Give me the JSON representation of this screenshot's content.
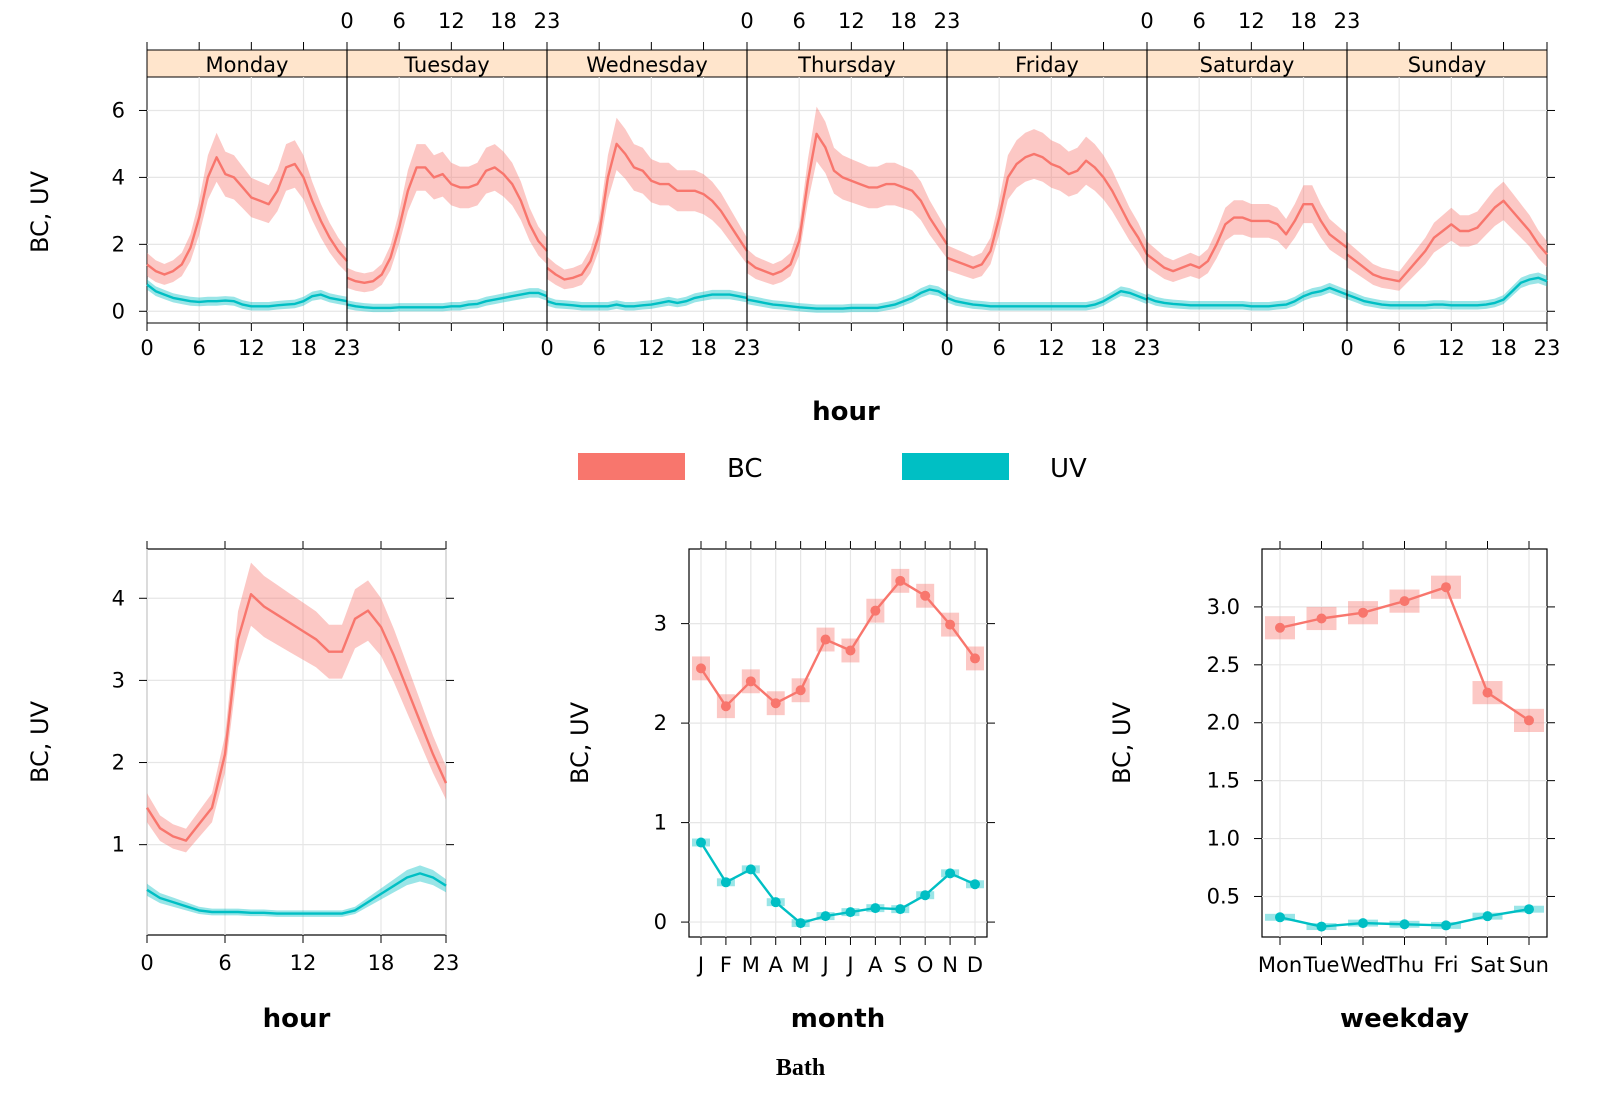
{
  "caption": "Bath",
  "colors": {
    "BC": "#F8766D",
    "UV": "#00BFC4",
    "strip": "#FFE5CC",
    "grid": "#E6E6E6"
  },
  "legend": {
    "items": [
      {
        "label": "BC",
        "color": "#F8766D"
      },
      {
        "label": "UV",
        "color": "#00BFC4"
      }
    ]
  },
  "chart_data": [
    {
      "id": "dayhour",
      "type": "line",
      "xlabel": "hour",
      "ylabel": "BC, UV",
      "ylim": [
        -0.35,
        7.0
      ],
      "xlim": [
        0,
        23
      ],
      "x_ticks": [
        "0",
        "6",
        "12",
        "18",
        "23"
      ],
      "y_ticks": [
        0,
        2,
        4,
        6
      ],
      "grid": true,
      "panels": [
        {
          "strip": "Monday",
          "BC": [
            1.4,
            1.2,
            1.1,
            1.2,
            1.4,
            1.9,
            2.8,
            4.0,
            4.6,
            4.1,
            4.0,
            3.7,
            3.4,
            3.3,
            3.2,
            3.6,
            4.3,
            4.4,
            4.0,
            3.3,
            2.7,
            2.2,
            1.8,
            1.5
          ],
          "UV": [
            0.8,
            0.6,
            0.5,
            0.4,
            0.35,
            0.3,
            0.28,
            0.3,
            0.3,
            0.32,
            0.3,
            0.2,
            0.15,
            0.15,
            0.15,
            0.18,
            0.2,
            0.22,
            0.3,
            0.45,
            0.5,
            0.4,
            0.35,
            0.3
          ]
        },
        {
          "strip": "Tuesday",
          "BC": [
            1.0,
            0.9,
            0.85,
            0.9,
            1.1,
            1.6,
            2.5,
            3.6,
            4.3,
            4.3,
            4.0,
            4.1,
            3.8,
            3.7,
            3.7,
            3.8,
            4.2,
            4.3,
            4.1,
            3.8,
            3.3,
            2.6,
            2.1,
            1.8
          ],
          "UV": [
            0.2,
            0.15,
            0.12,
            0.1,
            0.1,
            0.1,
            0.12,
            0.12,
            0.12,
            0.12,
            0.12,
            0.12,
            0.15,
            0.15,
            0.2,
            0.22,
            0.3,
            0.35,
            0.4,
            0.45,
            0.5,
            0.55,
            0.55,
            0.45
          ]
        },
        {
          "strip": "Wednesday",
          "BC": [
            1.3,
            1.1,
            0.95,
            1.0,
            1.1,
            1.5,
            2.3,
            4.0,
            5.0,
            4.7,
            4.3,
            4.2,
            3.9,
            3.8,
            3.8,
            3.6,
            3.6,
            3.6,
            3.5,
            3.3,
            3.0,
            2.6,
            2.2,
            1.8
          ],
          "UV": [
            0.3,
            0.22,
            0.2,
            0.18,
            0.15,
            0.15,
            0.15,
            0.15,
            0.2,
            0.15,
            0.15,
            0.18,
            0.2,
            0.25,
            0.3,
            0.25,
            0.3,
            0.4,
            0.45,
            0.5,
            0.5,
            0.5,
            0.45,
            0.4
          ]
        },
        {
          "strip": "Thursday",
          "BC": [
            1.5,
            1.3,
            1.2,
            1.1,
            1.2,
            1.4,
            2.1,
            3.9,
            5.3,
            4.9,
            4.2,
            4.0,
            3.9,
            3.8,
            3.7,
            3.7,
            3.8,
            3.8,
            3.7,
            3.6,
            3.3,
            2.8,
            2.4,
            2.0
          ],
          "UV": [
            0.35,
            0.3,
            0.25,
            0.2,
            0.18,
            0.15,
            0.12,
            0.1,
            0.08,
            0.08,
            0.08,
            0.08,
            0.1,
            0.1,
            0.1,
            0.1,
            0.15,
            0.2,
            0.3,
            0.4,
            0.55,
            0.65,
            0.6,
            0.45
          ]
        },
        {
          "strip": "Friday",
          "BC": [
            1.6,
            1.5,
            1.4,
            1.3,
            1.4,
            1.8,
            2.8,
            4.0,
            4.4,
            4.6,
            4.7,
            4.6,
            4.4,
            4.3,
            4.1,
            4.2,
            4.5,
            4.3,
            4.0,
            3.6,
            3.1,
            2.6,
            2.2,
            1.7
          ],
          "UV": [
            0.4,
            0.3,
            0.25,
            0.2,
            0.18,
            0.15,
            0.15,
            0.15,
            0.15,
            0.15,
            0.15,
            0.15,
            0.15,
            0.15,
            0.15,
            0.15,
            0.15,
            0.2,
            0.3,
            0.45,
            0.6,
            0.55,
            0.45,
            0.35
          ]
        },
        {
          "strip": "Saturday",
          "BC": [
            1.7,
            1.5,
            1.3,
            1.2,
            1.3,
            1.4,
            1.3,
            1.5,
            2.0,
            2.6,
            2.8,
            2.8,
            2.7,
            2.7,
            2.7,
            2.6,
            2.3,
            2.7,
            3.2,
            3.2,
            2.7,
            2.3,
            2.1,
            1.9
          ],
          "UV": [
            0.4,
            0.3,
            0.25,
            0.22,
            0.2,
            0.18,
            0.18,
            0.18,
            0.18,
            0.18,
            0.18,
            0.18,
            0.15,
            0.15,
            0.15,
            0.18,
            0.2,
            0.3,
            0.45,
            0.55,
            0.6,
            0.7,
            0.6,
            0.5
          ]
        },
        {
          "strip": "Sunday",
          "BC": [
            1.7,
            1.5,
            1.3,
            1.1,
            1.0,
            0.95,
            0.9,
            1.2,
            1.5,
            1.8,
            2.2,
            2.4,
            2.6,
            2.4,
            2.4,
            2.5,
            2.8,
            3.1,
            3.3,
            3.0,
            2.7,
            2.4,
            2.0,
            1.7
          ],
          "UV": [
            0.5,
            0.4,
            0.3,
            0.25,
            0.2,
            0.18,
            0.18,
            0.18,
            0.18,
            0.18,
            0.2,
            0.2,
            0.18,
            0.18,
            0.18,
            0.18,
            0.2,
            0.25,
            0.35,
            0.6,
            0.85,
            0.95,
            1.0,
            0.9
          ]
        }
      ]
    },
    {
      "id": "hour",
      "type": "line",
      "xlabel": "hour",
      "ylabel": "BC, UV",
      "xlim": [
        0,
        23
      ],
      "ylim": [
        -0.1,
        4.6
      ],
      "x_ticks": [
        "0",
        "6",
        "12",
        "18",
        "23"
      ],
      "y_ticks": [
        1,
        2,
        3,
        4
      ],
      "grid": true,
      "series": [
        {
          "name": "BC",
          "values": [
            1.45,
            1.2,
            1.1,
            1.05,
            1.25,
            1.45,
            2.1,
            3.5,
            4.05,
            3.9,
            3.8,
            3.7,
            3.6,
            3.5,
            3.35,
            3.35,
            3.75,
            3.85,
            3.65,
            3.3,
            2.9,
            2.5,
            2.1,
            1.75
          ]
        },
        {
          "name": "UV",
          "values": [
            0.45,
            0.35,
            0.3,
            0.25,
            0.2,
            0.18,
            0.18,
            0.18,
            0.17,
            0.17,
            0.16,
            0.16,
            0.16,
            0.16,
            0.16,
            0.16,
            0.2,
            0.3,
            0.4,
            0.5,
            0.6,
            0.65,
            0.6,
            0.5
          ]
        }
      ]
    },
    {
      "id": "month",
      "type": "line",
      "xlabel": "month",
      "ylabel": "BC, UV",
      "categories": [
        "J",
        "F",
        "M",
        "A",
        "M",
        "J",
        "J",
        "A",
        "S",
        "O",
        "N",
        "D"
      ],
      "ylim": [
        -0.15,
        3.75
      ],
      "y_ticks": [
        0,
        1,
        2,
        3
      ],
      "grid": true,
      "series": [
        {
          "name": "BC",
          "values": [
            2.55,
            2.17,
            2.42,
            2.2,
            2.33,
            2.84,
            2.73,
            3.13,
            3.43,
            3.28,
            2.99,
            2.65
          ]
        },
        {
          "name": "UV",
          "values": [
            0.8,
            0.4,
            0.53,
            0.2,
            -0.01,
            0.06,
            0.1,
            0.14,
            0.13,
            0.27,
            0.49,
            0.38
          ]
        }
      ]
    },
    {
      "id": "weekday",
      "type": "line",
      "xlabel": "weekday",
      "ylabel": "BC, UV",
      "categories": [
        "Mon",
        "Tue",
        "Wed",
        "Thu",
        "Fri",
        "Sat",
        "Sun"
      ],
      "ylim": [
        0.15,
        3.5
      ],
      "y_ticks": [
        "0.5",
        "1.0",
        "1.5",
        "2.0",
        "2.5",
        "3.0"
      ],
      "grid": true,
      "series": [
        {
          "name": "BC",
          "values": [
            2.82,
            2.9,
            2.95,
            3.05,
            3.17,
            2.26,
            2.02
          ]
        },
        {
          "name": "UV",
          "values": [
            0.32,
            0.24,
            0.27,
            0.26,
            0.25,
            0.33,
            0.39
          ]
        }
      ]
    }
  ]
}
